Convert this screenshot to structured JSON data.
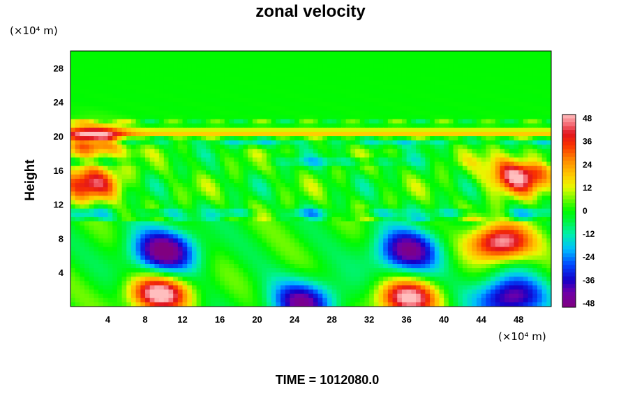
{
  "chart_data": {
    "type": "heatmap",
    "title": "zonal velocity",
    "ylabel": "Height",
    "xlabel": "",
    "x_unit": "(×10⁴ m)",
    "y_unit": "(×10⁴ m)",
    "xlim": [
      0,
      51.5
    ],
    "ylim": [
      0,
      30
    ],
    "x_ticks": [
      4,
      8,
      12,
      16,
      20,
      24,
      28,
      32,
      36,
      40,
      44,
      48
    ],
    "y_ticks": [
      4,
      8,
      12,
      16,
      20,
      24,
      28
    ],
    "colorbar": {
      "min": -50,
      "max": 50,
      "ticks": [
        48,
        36,
        24,
        12,
        0,
        -12,
        -24,
        -36,
        -48
      ],
      "placement": "right"
    },
    "field_features": [
      {
        "kind": "negative-core",
        "x": 10,
        "y": 6.5,
        "value": -46
      },
      {
        "kind": "negative-core",
        "x": 36,
        "y": 6.5,
        "value": -42
      },
      {
        "kind": "negative-core",
        "x": 25,
        "y": 0.5,
        "value": -40
      },
      {
        "kind": "negative-core",
        "x": 47,
        "y": 1.0,
        "value": -44
      },
      {
        "kind": "positive-core",
        "x": 9.5,
        "y": 1.5,
        "value": 50
      },
      {
        "kind": "positive-core",
        "x": 36,
        "y": 1.0,
        "value": 48
      },
      {
        "kind": "positive-core",
        "x": 46,
        "y": 7.5,
        "value": 50
      },
      {
        "kind": "positive-core",
        "x": 48,
        "y": 15.5,
        "value": 46
      },
      {
        "kind": "positive-core",
        "x": 2,
        "y": 14.5,
        "value": 36
      },
      {
        "kind": "positive-core",
        "x": 2.5,
        "y": 19.5,
        "value": 40
      },
      {
        "kind": "positive-layer",
        "x": 25,
        "y": 20.3,
        "value": 18
      },
      {
        "kind": "negative-layer",
        "x": 25,
        "y": 18.5,
        "value": -18
      }
    ]
  },
  "footer": {
    "time_label": "TIME = 1012080.0"
  }
}
